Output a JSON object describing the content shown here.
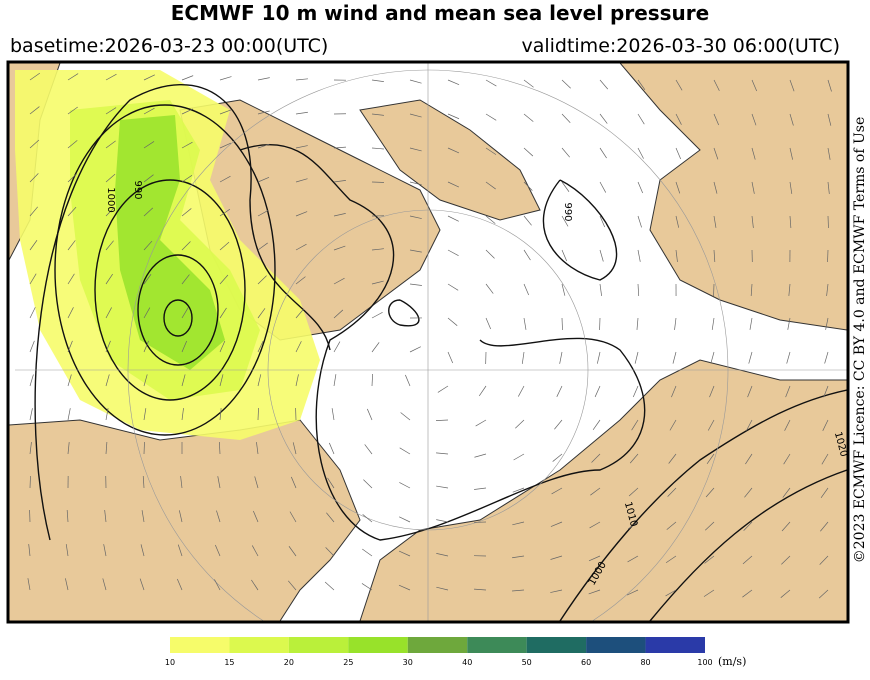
{
  "header": {
    "title": "ECMWF 10 m wind and mean sea level pressure",
    "basetime": "basetime:2026-03-23 00:00(UTC)",
    "validtime": "validtime:2026-03-30 06:00(UTC)"
  },
  "map": {
    "contour_labels": [
      "1000",
      "990",
      "990",
      "1010",
      "1000",
      "1020"
    ]
  },
  "credit": "©2023 ECMWF Licence: CC BY 4.0 and ECMWF Terms of Use",
  "colorbar": {
    "ticks": [
      10,
      15,
      20,
      25,
      30,
      40,
      50,
      60,
      80,
      100
    ],
    "colors": [
      "#f6fc6a",
      "#dcf94e",
      "#baf03a",
      "#98e22a",
      "#6ea83c",
      "#3d8a58",
      "#1f6c62",
      "#1d4f7c",
      "#2a3aa8"
    ],
    "unit": "(m/s)"
  }
}
